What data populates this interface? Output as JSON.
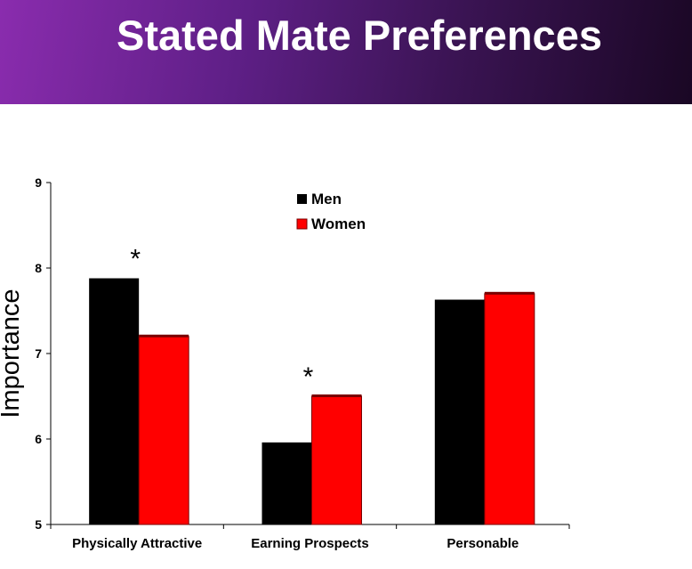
{
  "title": "Stated Mate Preferences",
  "colors": {
    "men": "#000000",
    "women": "#ff0000",
    "women_shadow": "#7a0000"
  },
  "chart_data": {
    "type": "bar",
    "categories": [
      "Physically Attractive",
      "Earning Prospects",
      "Personable"
    ],
    "series": [
      {
        "name": "Men",
        "values": [
          7.88,
          5.96,
          7.63
        ]
      },
      {
        "name": "Women",
        "values": [
          7.2,
          6.5,
          7.7
        ]
      }
    ],
    "ylabel": "Importance",
    "xlabel": "",
    "ylim": [
      5,
      9
    ],
    "yticks": [
      5,
      6,
      7,
      8,
      9
    ],
    "grid": false,
    "legend_placement": "top-center",
    "annotations": [
      {
        "text": "*",
        "category": "Physically Attractive"
      },
      {
        "text": "*",
        "category": "Earning Prospects"
      }
    ]
  }
}
